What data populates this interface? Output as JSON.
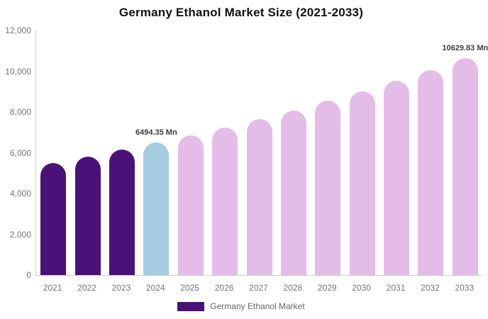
{
  "chart": {
    "title": "Germany Ethanol Market Size (2021-2033)"
  },
  "legend": {
    "label": "Germany Ethanol Market",
    "swatch_color": "#4a1278"
  },
  "chart_data": {
    "type": "bar",
    "title": "Germany Ethanol Market Size (2021-2033)",
    "unit": "Mn",
    "categories": [
      "2021",
      "2022",
      "2023",
      "2024",
      "2025",
      "2026",
      "2027",
      "2028",
      "2029",
      "2030",
      "2031",
      "2032",
      "2033"
    ],
    "series": [
      {
        "name": "Germany Ethanol Market",
        "values": [
          5510,
          5820,
          6148,
          6494.35,
          6860,
          7246,
          7654,
          8085,
          8540,
          9021,
          9529,
          10065,
          10629.83
        ]
      }
    ],
    "labeled_points": [
      {
        "category": "2024",
        "text": "6494.35 Mn"
      },
      {
        "category": "2033",
        "text": "10629.83 Mn"
      }
    ],
    "bar_colors": [
      "#4a1278",
      "#4a1278",
      "#4a1278",
      "#a5cbdf",
      "#e4bce8",
      "#e4bce8",
      "#e4bce8",
      "#e4bce8",
      "#e4bce8",
      "#e4bce8",
      "#e4bce8",
      "#e4bce8",
      "#e4bce8"
    ],
    "segment_colors": {
      "historical": "#4a1278",
      "current_year_highlight": "#a5cbdf",
      "forecast": "#e4bce8"
    },
    "ylim": [
      0,
      12000
    ],
    "yticks": [
      0,
      2000,
      4000,
      6000,
      8000,
      10000,
      12000
    ],
    "ytick_labels": [
      "0",
      "2,000",
      "4,000",
      "6,000",
      "8,000",
      "10,000",
      "12,000"
    ],
    "grid": false,
    "legend_position": "bottom"
  }
}
